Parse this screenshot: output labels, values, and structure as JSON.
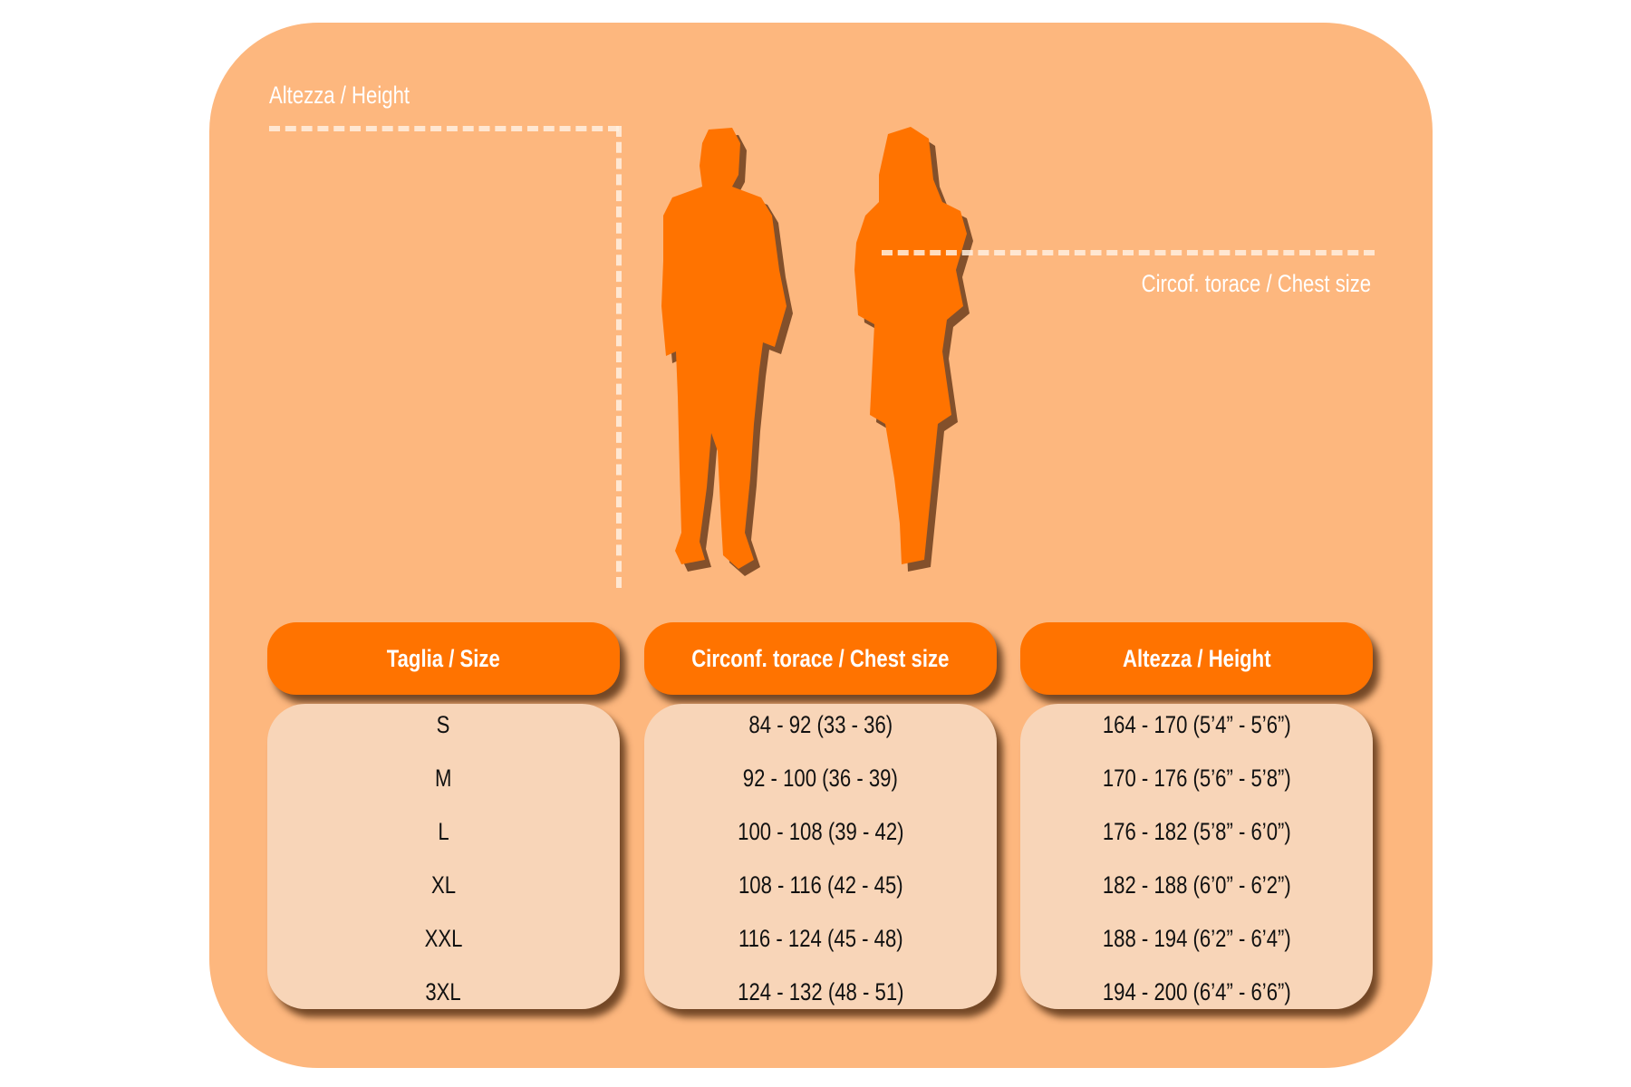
{
  "labels": {
    "height_label": "Altezza / Height",
    "chest_label": "Circof. torace / Chest size"
  },
  "colors": {
    "panel": "#fdb77e",
    "header": "#ff7300",
    "cell": "#f8d5b8",
    "silhouette": "#ff7300"
  },
  "icons": [
    "man-silhouette-icon",
    "woman-silhouette-icon"
  ],
  "table": {
    "columns": [
      {
        "header": "Taglia / Size",
        "values": [
          "S",
          "M",
          "L",
          "XL",
          "XXL",
          "3XL"
        ]
      },
      {
        "header": "Circonf. torace / Chest size",
        "values": [
          "84 - 92 (33 - 36)",
          "92 - 100 (36 - 39)",
          "100 - 108 (39 - 42)",
          "108 - 116 (42 - 45)",
          "116 - 124 (45 - 48)",
          "124 - 132 (48 - 51)"
        ]
      },
      {
        "header": "Altezza / Height",
        "values": [
          "164 - 170 (5’4” - 5’6”)",
          "170 - 176 (5’6” - 5’8”)",
          "176 - 182 (5’8” - 6’0”)",
          "182 - 188 (6’0” - 6’2”)",
          "188 - 194 (6’2” - 6’4”)",
          "194 - 200 (6’4” - 6’6”)"
        ]
      }
    ]
  }
}
